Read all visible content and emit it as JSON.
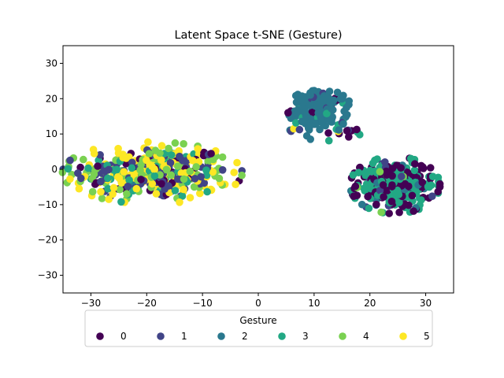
{
  "chart_data": {
    "type": "scatter",
    "title": "Latent Space t-SNE (Gesture)",
    "xlabel": "",
    "ylabel": "",
    "xlim": [
      -35,
      35
    ],
    "ylim": [
      -35,
      35
    ],
    "xticks": [
      -30,
      -20,
      -10,
      0,
      10,
      20,
      30
    ],
    "yticks": [
      -30,
      -20,
      -10,
      0,
      10,
      20,
      30
    ],
    "grid": false,
    "legend": {
      "title": "Gesture",
      "placement": "bottom-center",
      "entries": [
        "0",
        "1",
        "2",
        "3",
        "4",
        "5"
      ]
    },
    "colors": [
      "#440154",
      "#414487",
      "#2a788e",
      "#22a884",
      "#7ad151",
      "#fde725"
    ],
    "clusters": [
      {
        "name": "left",
        "center": [
          -19,
          -1
        ],
        "spread": [
          7,
          3.8
        ],
        "count": 420,
        "class_counts": [
          45,
          85,
          5,
          50,
          105,
          130
        ]
      },
      {
        "name": "upper-middle",
        "center": [
          11,
          17
        ],
        "spread": [
          2.5,
          2.5
        ],
        "count": 150,
        "class_counts": [
          10,
          5,
          125,
          10,
          0,
          0
        ]
      },
      {
        "name": "bridge",
        "center": [
          12,
          11
        ],
        "spread": [
          4,
          1.5
        ],
        "count": 25,
        "class_counts": [
          6,
          4,
          8,
          5,
          0,
          2
        ]
      },
      {
        "name": "right",
        "center": [
          24.5,
          -4.5
        ],
        "spread": [
          3.5,
          3.5
        ],
        "count": 320,
        "class_counts": [
          130,
          25,
          20,
          140,
          5,
          0
        ]
      }
    ]
  }
}
